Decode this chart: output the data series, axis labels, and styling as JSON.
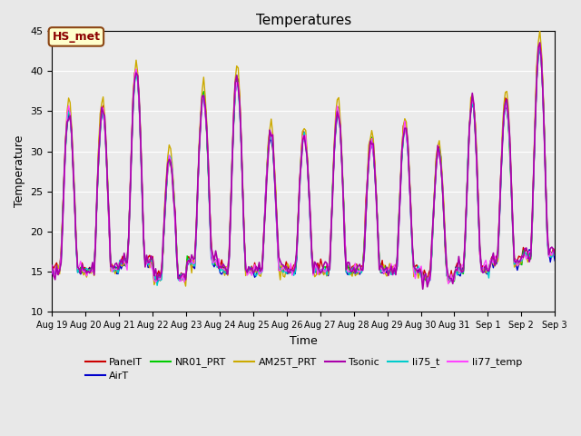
{
  "title": "Temperatures",
  "xlabel": "Time",
  "ylabel": "Temperature",
  "ylim": [
    10,
    45
  ],
  "yticks": [
    10,
    15,
    20,
    25,
    30,
    35,
    40,
    45
  ],
  "annotation_text": "HS_met",
  "annotation_bbox": {
    "boxstyle": "round,pad=0.3",
    "facecolor": "#ffffcc",
    "edgecolor": "#8B4513",
    "linewidth": 1.5
  },
  "annotation_color": "#8B0000",
  "annotation_fontsize": 9,
  "annotation_fontweight": "bold",
  "bg_color": "#e8e8e8",
  "axes_bg_color": "#ebebeb",
  "grid_color": "white",
  "series_names": [
    "PanelT",
    "AirT",
    "NR01_PRT",
    "AM25T_PRT",
    "Tsonic",
    "li75_t",
    "li77_temp"
  ],
  "series_colors": [
    "#cc0000",
    "#0000cc",
    "#00cc00",
    "#ccaa00",
    "#aa00aa",
    "#00cccc",
    "#ff44ff"
  ],
  "series_lw": [
    1.0,
    1.0,
    1.0,
    1.0,
    1.2,
    1.0,
    1.0
  ],
  "series_zorder": [
    3,
    3,
    3,
    3,
    4,
    3,
    3
  ],
  "n_points": 336,
  "day_peaks": [
    35,
    35,
    40,
    29,
    37,
    39,
    32,
    32,
    35,
    31,
    33,
    30,
    36,
    36,
    43
  ],
  "day_mins": [
    15,
    15,
    16,
    14,
    16,
    15,
    15,
    15,
    15,
    15,
    15,
    14,
    15,
    16,
    17
  ],
  "xtick_labels": [
    "Aug 19",
    "Aug 20",
    "Aug 21",
    "Aug 22",
    "Aug 23",
    "Aug 24",
    "Aug 25",
    "Aug 26",
    "Aug 27",
    "Aug 28",
    "Aug 29",
    "Aug 30",
    "Aug 31",
    "Sep 1",
    "Sep 2",
    "Sep 3"
  ]
}
